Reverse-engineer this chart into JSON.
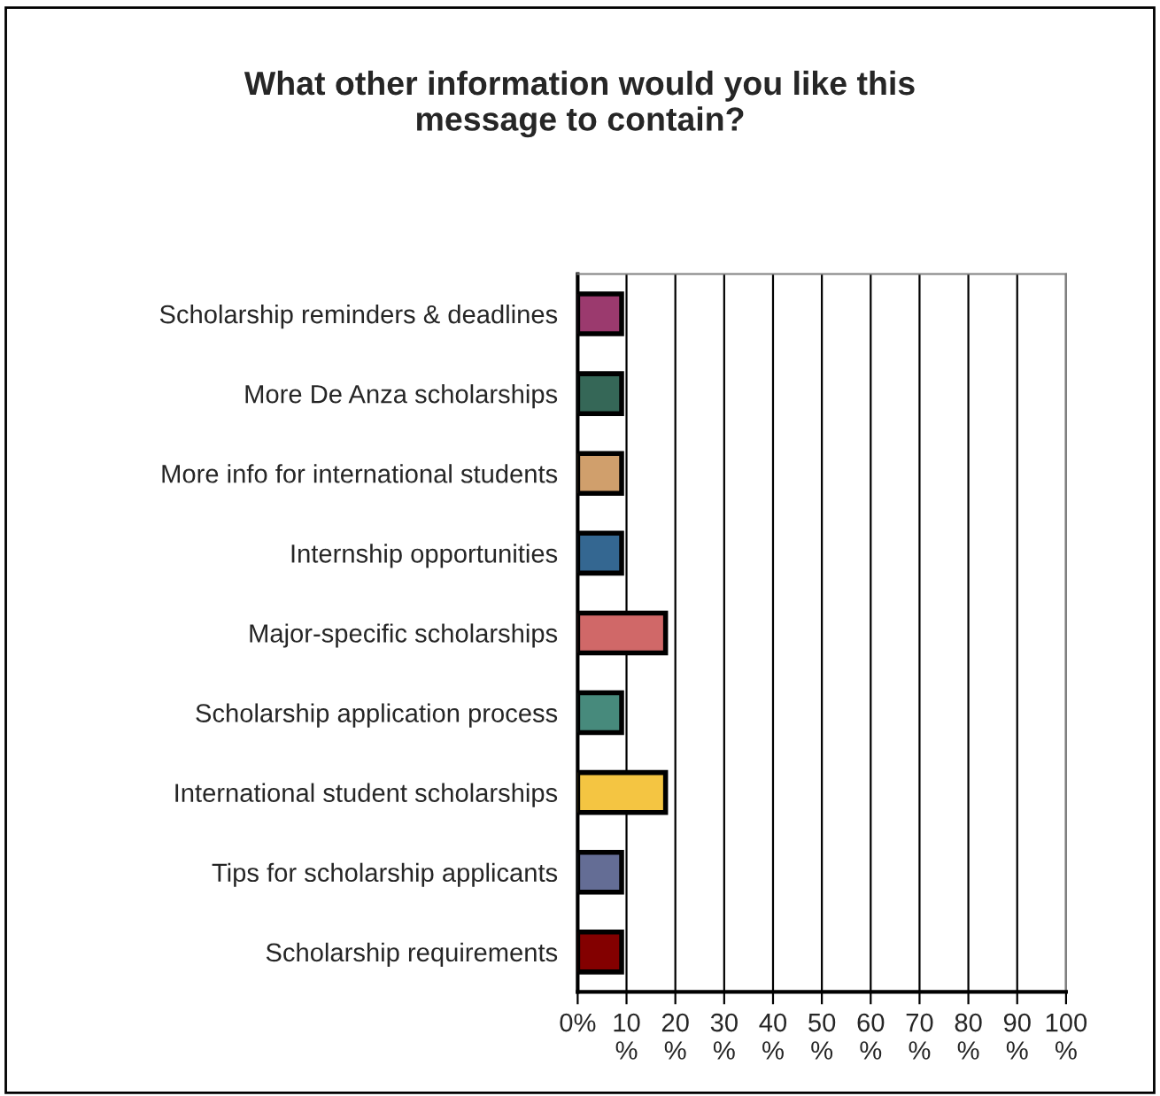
{
  "chart_data": {
    "type": "bar",
    "orientation": "horizontal",
    "title": "What other information would you like this\nmessage to contain?",
    "categories": [
      "Scholarship reminders & deadlines",
      "More De Anza scholarships",
      "More info for international students",
      "Internship opportunities",
      "Major-specific scholarships",
      "Scholarship application process",
      "International student scholarships",
      "Tips for scholarship applicants",
      "Scholarship requirements"
    ],
    "values": [
      9,
      9,
      9,
      9,
      18,
      9,
      18,
      9,
      9
    ],
    "colors": [
      "#9b3a6e",
      "#356757",
      "#d09f6c",
      "#346791",
      "#d06868",
      "#478a7c",
      "#f4c542",
      "#646d95",
      "#830000"
    ],
    "xlim": [
      0,
      100
    ],
    "xticks": [
      {
        "value": 0,
        "label": "0%"
      },
      {
        "value": 10,
        "label": "10\n%"
      },
      {
        "value": 20,
        "label": "20\n%"
      },
      {
        "value": 30,
        "label": "30\n%"
      },
      {
        "value": 40,
        "label": "40\n%"
      },
      {
        "value": 50,
        "label": "50\n%"
      },
      {
        "value": 60,
        "label": "60\n%"
      },
      {
        "value": 70,
        "label": "70\n%"
      },
      {
        "value": 80,
        "label": "80\n%"
      },
      {
        "value": 90,
        "label": "90\n%"
      },
      {
        "value": 100,
        "label": "100\n%"
      }
    ],
    "grid": "x"
  }
}
